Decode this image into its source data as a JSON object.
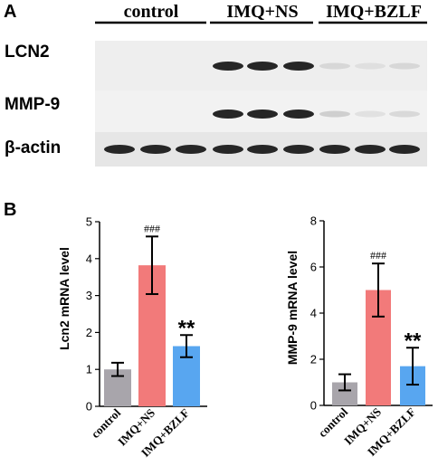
{
  "panel_a": {
    "label": "A",
    "groups": [
      "control",
      "IMQ+NS",
      "IMQ+BZLF"
    ],
    "bands": [
      {
        "name": "LCN2",
        "intensities": [
          0,
          0,
          0,
          0.85,
          0.85,
          0.85,
          0.25,
          0.2,
          0.25
        ]
      },
      {
        "name": "MMP-9",
        "intensities": [
          0,
          0,
          0,
          0.85,
          0.85,
          0.85,
          0.3,
          0.2,
          0.25
        ]
      },
      {
        "name": "β-actin",
        "intensities": [
          0.85,
          0.85,
          0.85,
          0.85,
          0.85,
          0.85,
          0.85,
          0.85,
          0.85
        ]
      }
    ]
  },
  "panel_b_label": "B",
  "chart_data": [
    {
      "type": "bar",
      "categories": [
        "control",
        "IMQ+NS",
        "IMQ+BZLF"
      ],
      "values": [
        1.0,
        3.82,
        1.63
      ],
      "errors": [
        0.18,
        0.78,
        0.3
      ],
      "colors": [
        "#a8a5ab",
        "#f27a7a",
        "#58a6f0"
      ],
      "annotations": [
        "",
        "###",
        "**"
      ],
      "ylabel": "Lcn2 mRNA level",
      "ylim": [
        0,
        5
      ],
      "yticks": [
        "0",
        "1",
        "2",
        "3",
        "4",
        "5"
      ],
      "grid": false
    },
    {
      "type": "bar",
      "categories": [
        "control",
        "IMQ+NS",
        "IMQ+BZLF"
      ],
      "values": [
        1.0,
        5.0,
        1.7
      ],
      "errors": [
        0.35,
        1.15,
        0.8
      ],
      "colors": [
        "#a8a5ab",
        "#f27a7a",
        "#58a6f0"
      ],
      "annotations": [
        "",
        "###",
        "**"
      ],
      "ylabel": "MMP-9 mRNA level",
      "ylim": [
        0,
        8
      ],
      "yticks": [
        "0",
        "2",
        "4",
        "6",
        "8"
      ],
      "grid": false
    }
  ]
}
